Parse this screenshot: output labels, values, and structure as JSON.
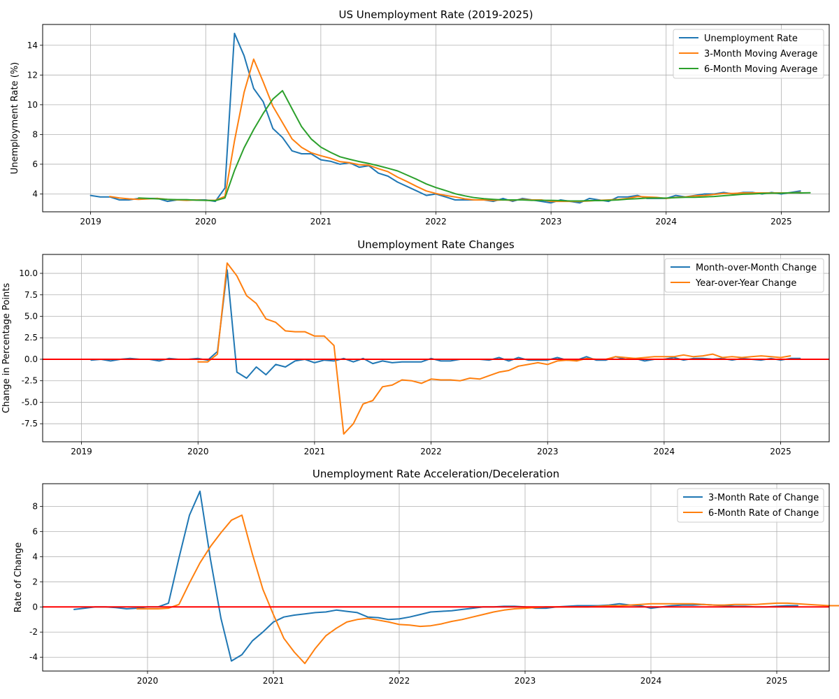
{
  "colors": {
    "blue": "#1f77b4",
    "orange": "#ff7f0e",
    "green": "#2ca02c",
    "red": "#ff0000"
  },
  "chart_data": [
    {
      "type": "line",
      "title": "US Unemployment Rate (2019-2025)",
      "xlabel": "",
      "ylabel": "Unemployment Rate (%)",
      "x_start": "2019-01",
      "x_ticks": [
        "2019",
        "2020",
        "2021",
        "2022",
        "2023",
        "2024",
        "2025"
      ],
      "y_ticks": [
        "4",
        "6",
        "8",
        "10",
        "12",
        "14"
      ],
      "xlim": [
        "2018-08",
        "2025-06"
      ],
      "ylim": [
        2.8,
        15.4
      ],
      "grid": true,
      "legend_position": "upper right",
      "series": [
        {
          "name": "Unemployment Rate",
          "color": "#1f77b4",
          "offset": 0,
          "values": [
            3.9,
            3.8,
            3.8,
            3.6,
            3.6,
            3.7,
            3.7,
            3.7,
            3.5,
            3.6,
            3.6,
            3.6,
            3.6,
            3.5,
            4.4,
            14.8,
            13.3,
            11.1,
            10.2,
            8.4,
            7.8,
            6.9,
            6.7,
            6.7,
            6.3,
            6.2,
            6.0,
            6.1,
            5.8,
            5.9,
            5.4,
            5.2,
            4.8,
            4.5,
            4.2,
            3.9,
            4.0,
            3.8,
            3.6,
            3.6,
            3.6,
            3.6,
            3.5,
            3.7,
            3.5,
            3.7,
            3.6,
            3.5,
            3.4,
            3.6,
            3.5,
            3.4,
            3.7,
            3.6,
            3.5,
            3.8,
            3.8,
            3.9,
            3.7,
            3.7,
            3.7,
            3.9,
            3.8,
            3.9,
            4.0,
            4.0,
            4.1,
            4.0,
            4.1,
            4.1,
            4.0,
            4.1,
            4.0,
            4.1,
            4.2
          ]
        },
        {
          "name": "3-Month Moving Average",
          "color": "#ff7f0e",
          "offset": 2,
          "values": [
            3.83,
            3.73,
            3.67,
            3.63,
            3.67,
            3.7,
            3.63,
            3.6,
            3.57,
            3.6,
            3.57,
            3.57,
            3.83,
            7.57,
            10.83,
            13.07,
            11.53,
            9.9,
            8.8,
            7.7,
            7.13,
            6.77,
            6.57,
            6.4,
            6.17,
            6.1,
            5.97,
            5.93,
            5.7,
            5.5,
            5.13,
            4.83,
            4.5,
            4.2,
            4.03,
            3.9,
            3.8,
            3.67,
            3.6,
            3.6,
            3.57,
            3.6,
            3.57,
            3.63,
            3.6,
            3.6,
            3.5,
            3.5,
            3.5,
            3.5,
            3.53,
            3.57,
            3.6,
            3.63,
            3.7,
            3.83,
            3.8,
            3.77,
            3.7,
            3.77,
            3.8,
            3.87,
            3.9,
            3.97,
            4.03,
            4.03,
            4.07,
            4.07,
            4.07,
            4.07,
            4.07,
            4.07,
            4.1
          ]
        },
        {
          "name": "6-Month Moving Average",
          "color": "#2ca02c",
          "offset": 5,
          "values": [
            3.73,
            3.7,
            3.67,
            3.63,
            3.62,
            3.62,
            3.58,
            3.57,
            3.55,
            3.73,
            5.58,
            7.1,
            8.33,
            9.42,
            10.38,
            10.95,
            9.73,
            8.52,
            7.7,
            7.15,
            6.8,
            6.5,
            6.33,
            6.18,
            6.05,
            5.9,
            5.73,
            5.55,
            5.27,
            4.98,
            4.67,
            4.43,
            4.23,
            4.02,
            3.87,
            3.75,
            3.68,
            3.63,
            3.6,
            3.6,
            3.6,
            3.57,
            3.57,
            3.57,
            3.55,
            3.53,
            3.53,
            3.55,
            3.55,
            3.57,
            3.6,
            3.65,
            3.68,
            3.72,
            3.73,
            3.72,
            3.75,
            3.78,
            3.78,
            3.8,
            3.83,
            3.88,
            3.93,
            3.98,
            4.0,
            4.03,
            4.05,
            4.05,
            4.08,
            4.07,
            4.08
          ]
        }
      ]
    },
    {
      "type": "line",
      "title": "Unemployment Rate Changes",
      "xlabel": "",
      "ylabel": "Change in Percentage Points",
      "x_start": "2019-01",
      "x_ticks": [
        "2019",
        "2020",
        "2021",
        "2022",
        "2023",
        "2024",
        "2025"
      ],
      "y_ticks": [
        "-7.5",
        "-5.0",
        "-2.5",
        "0.0",
        "2.5",
        "5.0",
        "7.5",
        "10.0"
      ],
      "xlim": [
        "2018-09",
        "2025-06"
      ],
      "ylim": [
        -9.6,
        12.2
      ],
      "grid": true,
      "legend_position": "upper right",
      "zero_line": 0,
      "series": [
        {
          "name": "Month-over-Month Change",
          "color": "#1f77b4",
          "offset": 1,
          "values": [
            -0.1,
            0.0,
            -0.2,
            0.0,
            0.1,
            0.0,
            0.0,
            -0.2,
            0.1,
            0.0,
            0.0,
            0.1,
            -0.1,
            0.9,
            10.4,
            -1.5,
            -2.2,
            -0.9,
            -1.8,
            -0.6,
            -0.9,
            -0.2,
            0.0,
            -0.4,
            -0.1,
            -0.2,
            0.1,
            -0.3,
            0.1,
            -0.5,
            -0.2,
            -0.4,
            -0.3,
            -0.3,
            -0.3,
            0.1,
            -0.2,
            -0.2,
            0.0,
            0.0,
            0.0,
            -0.1,
            0.2,
            -0.2,
            0.2,
            -0.1,
            -0.1,
            -0.1,
            0.2,
            -0.1,
            -0.1,
            0.3,
            -0.1,
            -0.1,
            0.3,
            0.0,
            0.1,
            -0.2,
            0.0,
            0.0,
            0.2,
            -0.1,
            0.1,
            0.1,
            0.0,
            0.1,
            -0.1,
            0.1,
            0.0,
            -0.1,
            0.1,
            -0.1,
            0.1,
            0.1
          ]
        },
        {
          "name": "Year-over-Year Change",
          "color": "#ff7f0e",
          "offset": 12,
          "values": [
            -0.3,
            -0.3,
            0.6,
            11.2,
            9.7,
            7.4,
            6.5,
            4.7,
            4.3,
            3.3,
            3.2,
            3.2,
            2.7,
            2.7,
            1.6,
            -8.7,
            -7.5,
            -5.2,
            -4.8,
            -3.2,
            -3.0,
            -2.4,
            -2.5,
            -2.8,
            -2.3,
            -2.4,
            -2.4,
            -2.5,
            -2.2,
            -2.3,
            -1.9,
            -1.5,
            -1.3,
            -0.8,
            -0.6,
            -0.4,
            -0.6,
            -0.2,
            -0.1,
            -0.2,
            0.1,
            0.0,
            0.0,
            0.3,
            0.2,
            0.1,
            0.2,
            0.3,
            0.3,
            0.3,
            0.5,
            0.3,
            0.4,
            0.6,
            0.2,
            0.3,
            0.2,
            0.3,
            0.4,
            0.3,
            0.2,
            0.4
          ]
        }
      ]
    },
    {
      "type": "line",
      "title": "Unemployment Rate Acceleration/Deceleration",
      "xlabel": "",
      "ylabel": "Rate of Change",
      "x_start": "2019-06",
      "x_ticks": [
        "2020",
        "2021",
        "2022",
        "2023",
        "2024",
        "2025"
      ],
      "y_ticks": [
        "-4",
        "-2",
        "0",
        "2",
        "4",
        "6",
        "8"
      ],
      "xlim": [
        "2019-03",
        "2025-06"
      ],
      "ylim": [
        -5.1,
        9.8
      ],
      "grid": true,
      "legend_position": "upper right",
      "zero_line": 0,
      "series": [
        {
          "name": "3-Month Rate of Change",
          "color": "#1f77b4",
          "offset": 0,
          "values": [
            -0.2,
            -0.1,
            0.0,
            0.0,
            -0.05,
            -0.15,
            -0.1,
            0.0,
            0.0,
            0.3,
            3.9,
            7.3,
            9.2,
            3.8,
            -0.9,
            -4.3,
            -3.8,
            -2.7,
            -2.0,
            -1.2,
            -0.8,
            -0.65,
            -0.55,
            -0.45,
            -0.4,
            -0.25,
            -0.35,
            -0.45,
            -0.8,
            -0.85,
            -1.0,
            -0.95,
            -0.8,
            -0.6,
            -0.4,
            -0.35,
            -0.3,
            -0.2,
            -0.1,
            0.0,
            0.0,
            0.05,
            0.05,
            0.0,
            -0.1,
            -0.1,
            0.0,
            0.05,
            0.1,
            0.1,
            0.1,
            0.15,
            0.25,
            0.15,
            0.1,
            -0.1,
            0.0,
            0.1,
            0.15,
            0.15,
            0.2,
            0.15,
            0.1,
            0.05,
            0.05,
            0.0,
            0.0,
            0.05,
            0.1,
            0.1
          ]
        },
        {
          "name": "6-Month Rate of Change",
          "color": "#ff7f0e",
          "offset": 6,
          "values": [
            -0.15,
            -0.15,
            -0.15,
            -0.1,
            0.2,
            1.9,
            3.5,
            4.8,
            5.9,
            6.9,
            7.3,
            4.2,
            1.4,
            -0.6,
            -2.5,
            -3.6,
            -4.5,
            -3.3,
            -2.3,
            -1.7,
            -1.2,
            -1.0,
            -0.9,
            -1.05,
            -1.2,
            -1.4,
            -1.45,
            -1.55,
            -1.5,
            -1.35,
            -1.15,
            -1.0,
            -0.8,
            -0.6,
            -0.4,
            -0.25,
            -0.15,
            -0.1,
            -0.05,
            0.0,
            0.0,
            0.0,
            0.0,
            0.0,
            0.05,
            0.1,
            0.1,
            0.15,
            0.2,
            0.25,
            0.25,
            0.25,
            0.25,
            0.25,
            0.2,
            0.15,
            0.15,
            0.2,
            0.2,
            0.2,
            0.25,
            0.3,
            0.3,
            0.25,
            0.2,
            0.15,
            0.1,
            0.1
          ]
        }
      ]
    }
  ]
}
